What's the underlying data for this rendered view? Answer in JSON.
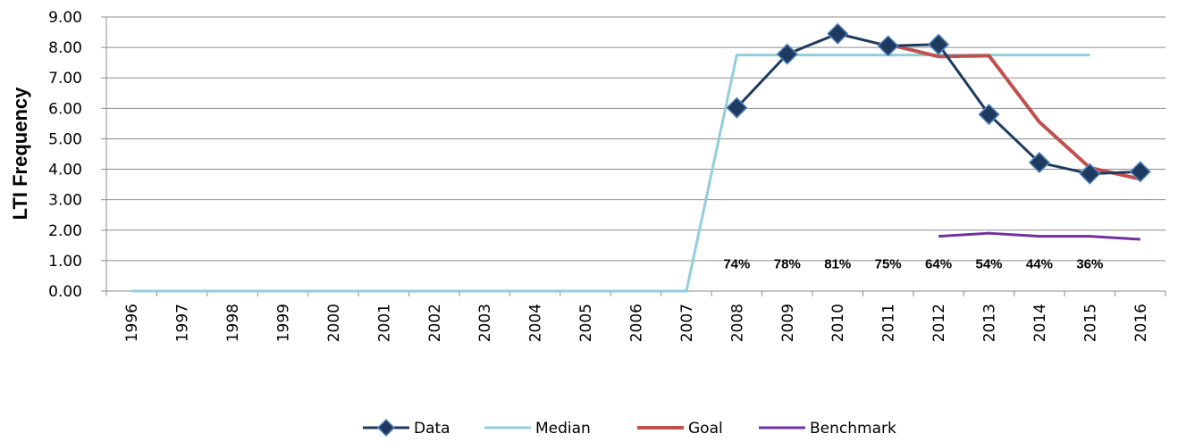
{
  "chart_data": {
    "type": "line",
    "ylabel": "LTI Frequency",
    "ylim": [
      0,
      9
    ],
    "yticks": [
      "0.00",
      "1.00",
      "2.00",
      "3.00",
      "4.00",
      "5.00",
      "6.00",
      "7.00",
      "8.00",
      "9.00"
    ],
    "grid": true,
    "legend_position": "bottom",
    "categories": [
      "1996",
      "1997",
      "1998",
      "1999",
      "2000",
      "2001",
      "2002",
      "2003",
      "2004",
      "2005",
      "2006",
      "2007",
      "2008",
      "2009",
      "2010",
      "2011",
      "2012",
      "2013",
      "2014",
      "2015",
      "2016"
    ],
    "series": [
      {
        "name": "Data",
        "color": "#1f3a5f",
        "marker": "diamond",
        "values": [
          null,
          null,
          null,
          null,
          null,
          null,
          null,
          null,
          null,
          null,
          null,
          null,
          6.02,
          7.78,
          8.45,
          8.05,
          8.1,
          5.8,
          4.22,
          3.85,
          3.92
        ]
      },
      {
        "name": "Median",
        "color": "#92cddc",
        "marker": "none",
        "values": [
          0,
          0,
          0,
          0,
          0,
          0,
          0,
          0,
          0,
          0,
          0,
          0,
          7.75,
          7.75,
          7.75,
          7.75,
          7.75,
          7.75,
          7.75,
          7.75,
          null
        ]
      },
      {
        "name": "Goal",
        "color": "#c0504d",
        "marker": "none",
        "values": [
          null,
          null,
          null,
          null,
          null,
          null,
          null,
          null,
          null,
          null,
          null,
          null,
          null,
          null,
          null,
          8.1,
          7.7,
          7.73,
          5.55,
          4.05,
          3.68
        ]
      },
      {
        "name": "Benchmark",
        "color": "#7030a0",
        "marker": "none",
        "values": [
          null,
          null,
          null,
          null,
          null,
          null,
          null,
          null,
          null,
          null,
          null,
          null,
          null,
          null,
          null,
          null,
          1.8,
          1.9,
          1.8,
          1.8,
          1.7
        ]
      }
    ],
    "annotations": [
      {
        "x": "2008",
        "text": "74%"
      },
      {
        "x": "2009",
        "text": "78%"
      },
      {
        "x": "2010",
        "text": "81%"
      },
      {
        "x": "2011",
        "text": "75%"
      },
      {
        "x": "2012",
        "text": "64%"
      },
      {
        "x": "2013",
        "text": "54%"
      },
      {
        "x": "2014",
        "text": "44%"
      },
      {
        "x": "2015",
        "text": "36%"
      }
    ],
    "annotation_level": 0.9
  }
}
